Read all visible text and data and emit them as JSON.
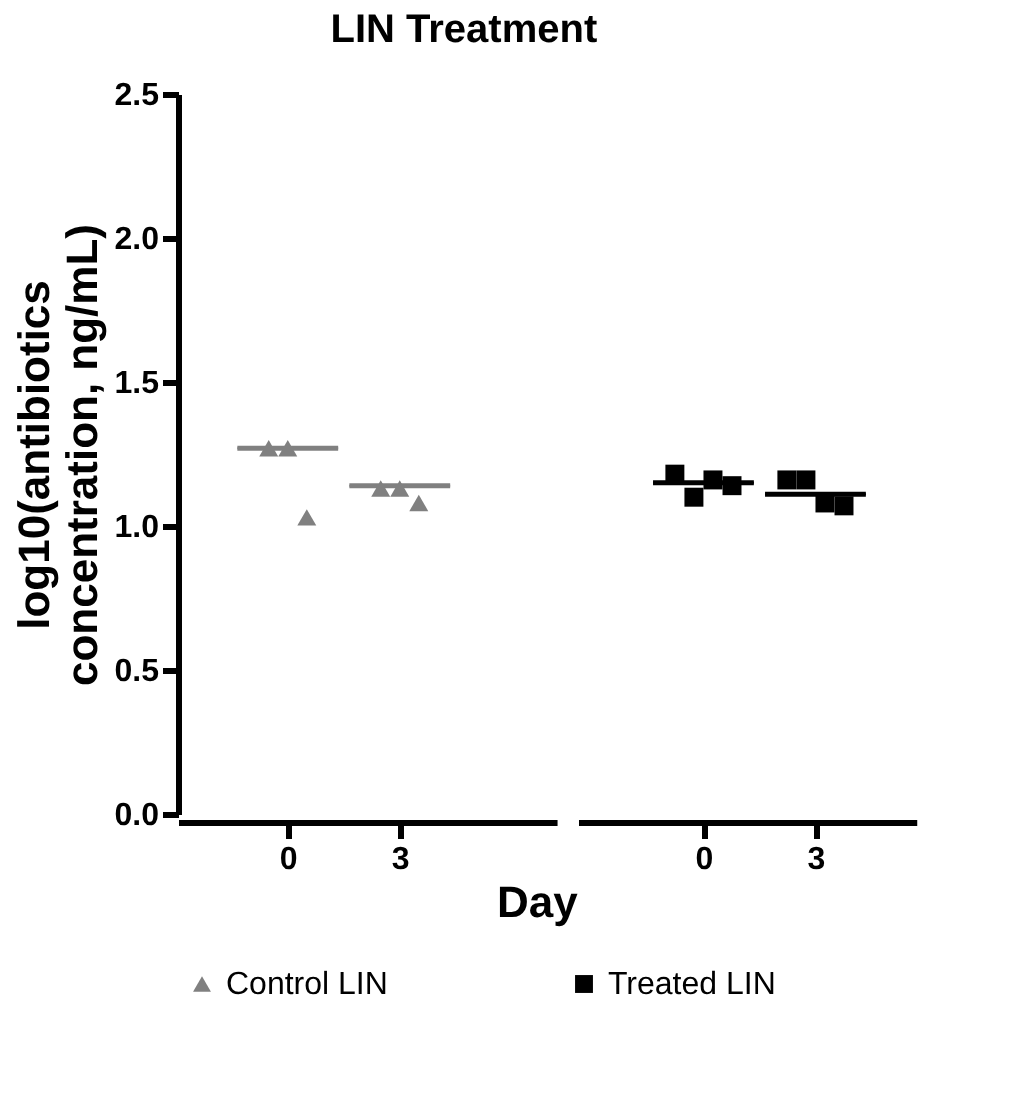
{
  "chart_data": [
    {
      "type": "scatter",
      "title": "LIN Treatment",
      "xlabel": "Day",
      "ylabel": "log10(antibiotics concentration, ng/mL)",
      "categories": [
        "0",
        "3"
      ],
      "ylim": [
        0,
        2.5
      ],
      "yticks": [
        {
          "value": 0,
          "label": "0.0"
        },
        0.5,
        {
          "value": 1,
          "label": "1.0"
        },
        1.5,
        {
          "value": 2,
          "label": "2.0"
        },
        2.5
      ],
      "grid": false,
      "legend": "bottom",
      "series": [
        {
          "name": "Control LIN",
          "marker": "triangle",
          "color": "#808080",
          "x": [
            "0",
            "0",
            "0",
            "3",
            "3",
            "3"
          ],
          "values": [
            1.27,
            1.27,
            1.03,
            1.13,
            1.13,
            1.08
          ]
        },
        {
          "type": "box",
          "color": "#808080",
          "boxes": [
            {
              "low": 1.27,
              "q1": 1.27,
              "median": 1.27,
              "q3": 1.27,
              "high": 1.27
            },
            {
              "low": 1.14,
              "q1": 1.14,
              "median": 1.14,
              "q3": 1.14,
              "high": 1.14
            }
          ]
        }
      ]
    },
    {
      "type": "scatter",
      "categories": [
        "0",
        "3"
      ],
      "ylim": [
        0,
        2.5
      ],
      "tick_labels": "x",
      "grid": false,
      "legend": "bottom",
      "series": [
        {
          "name": "Treated LIN",
          "marker": "square",
          "color": "#000000",
          "x": [
            "0",
            "0",
            "0",
            "0",
            "3",
            "3",
            "3",
            "3"
          ],
          "values": [
            1.18,
            1.1,
            1.16,
            1.14,
            1.16,
            1.16,
            1.08,
            1.07
          ]
        },
        {
          "type": "box",
          "color": "#000000",
          "boxes": [
            {
              "low": 1.15,
              "q1": 1.15,
              "median": 1.15,
              "q3": 1.15,
              "high": 1.15
            },
            {
              "low": 1.11,
              "q1": 1.11,
              "median": 1.11,
              "q3": 1.11,
              "high": 1.11
            }
          ]
        }
      ]
    }
  ]
}
